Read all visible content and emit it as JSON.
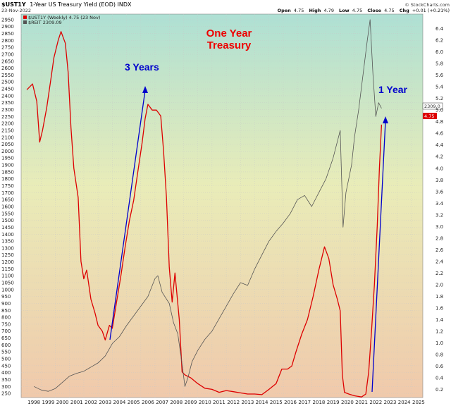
{
  "header": {
    "symbol": "$UST1Y",
    "description": "1-Year US Treasury Yield (EOD) INDX",
    "date": "23-Nov-2022",
    "source": "© StockCharts.com",
    "quote": {
      "open_label": "Open",
      "open": "4.75",
      "high_label": "High",
      "high": "4.79",
      "low_label": "Low",
      "low": "4.75",
      "close_label": "Close",
      "close": "4.75",
      "chg_label": "Chg",
      "chg": "+0.01 (+0.21%)"
    }
  },
  "legend": [
    {
      "text": "$UST1Y (Weekly) 4.75 (23 Nov)",
      "color": "#dd0000"
    },
    {
      "text": "$REIT 2309.09",
      "color": "#555555"
    }
  ],
  "annotations": {
    "title_line1": "One Year",
    "title_line2": "Treasury",
    "three_years": "3 Years",
    "one_year": "1 Year"
  },
  "price_labels": {
    "reit": "2309.0",
    "yield": "4.75"
  },
  "colors": {
    "yield": "#dd0000",
    "reit": "#555555",
    "arrow": "#0000cc",
    "annotation_red": "#ee0000",
    "annotation_blue": "#0000cc"
  },
  "chart_data": {
    "type": "line",
    "x_axis_labels": [
      "1998",
      "1999",
      "2000",
      "2001",
      "2002",
      "2003",
      "2004",
      "2005",
      "2006",
      "2007",
      "2008",
      "2009",
      "2010",
      "2011",
      "2012",
      "2013",
      "2014",
      "2015",
      "2016",
      "2017",
      "2018",
      "2019",
      "2020",
      "2021",
      "2022",
      "2023",
      "2024",
      "2025"
    ],
    "xlim": [
      1997.6,
      2025.8
    ],
    "left_axis": {
      "ylim": [
        220,
        2990
      ],
      "ticks": [
        250,
        300,
        350,
        400,
        450,
        500,
        550,
        600,
        650,
        700,
        750,
        800,
        850,
        900,
        950,
        1000,
        1050,
        1100,
        1150,
        1200,
        1250,
        1300,
        1350,
        1400,
        1450,
        1500,
        1550,
        1600,
        1650,
        1700,
        1750,
        1800,
        1850,
        1900,
        1950,
        2000,
        2050,
        2100,
        2150,
        2200,
        2250,
        2300,
        2350,
        2400,
        2450,
        2500,
        2550,
        2600,
        2650,
        2700,
        2750,
        2800,
        2850,
        2900,
        2950
      ]
    },
    "right_axis": {
      "ylim": [
        0.06,
        6.65
      ],
      "ticks": [
        0.2,
        0.4,
        0.6,
        0.8,
        1.0,
        1.2,
        1.4,
        1.6,
        1.8,
        2.0,
        2.2,
        2.4,
        2.6,
        2.8,
        3.0,
        3.2,
        3.4,
        3.6,
        3.8,
        4.0,
        4.2,
        4.4,
        4.6,
        4.8,
        5.0,
        5.2,
        5.4,
        5.6,
        5.8,
        6.0,
        6.2,
        6.4
      ]
    },
    "series": [
      {
        "name": "$UST1Y (Weekly)",
        "axis": "right",
        "x": [
          1998.0,
          1998.4,
          1998.7,
          1998.9,
          1999.1,
          1999.4,
          1999.7,
          1999.9,
          2000.2,
          2000.4,
          2000.7,
          2000.9,
          2001.1,
          2001.3,
          2001.6,
          2001.8,
          2002.0,
          2002.2,
          2002.5,
          2002.8,
          2003.0,
          2003.3,
          2003.5,
          2003.8,
          2004.0,
          2004.3,
          2004.6,
          2004.9,
          2005.2,
          2005.5,
          2005.8,
          2006.1,
          2006.3,
          2006.5,
          2006.8,
          2007.1,
          2007.4,
          2007.6,
          2007.8,
          2008.0,
          2008.2,
          2008.4,
          2008.7,
          2008.9,
          2009.1,
          2009.5,
          2010.0,
          2010.5,
          2011.0,
          2011.5,
          2012.0,
          2012.5,
          2013.0,
          2013.5,
          2014.0,
          2014.5,
          2015.0,
          2015.5,
          2015.9,
          2016.3,
          2016.6,
          2016.9,
          2017.3,
          2017.7,
          2018.1,
          2018.5,
          2018.9,
          2019.2,
          2019.5,
          2019.8,
          2020.0,
          2020.15,
          2020.3,
          2020.6,
          2021.0,
          2021.5,
          2021.8,
          2022.0,
          2022.2,
          2022.4,
          2022.6,
          2022.75,
          2022.9
        ],
        "values": [
          5.35,
          5.45,
          5.15,
          4.45,
          4.65,
          5.05,
          5.55,
          5.9,
          6.2,
          6.35,
          6.15,
          5.65,
          4.7,
          4.0,
          3.5,
          2.4,
          2.1,
          2.25,
          1.75,
          1.5,
          1.3,
          1.2,
          1.05,
          1.3,
          1.25,
          1.7,
          2.15,
          2.65,
          3.1,
          3.45,
          3.95,
          4.45,
          4.85,
          5.1,
          5.0,
          5.0,
          4.9,
          4.3,
          3.5,
          2.3,
          1.7,
          2.2,
          1.4,
          0.5,
          0.45,
          0.4,
          0.3,
          0.22,
          0.2,
          0.15,
          0.18,
          0.16,
          0.14,
          0.12,
          0.12,
          0.11,
          0.2,
          0.3,
          0.55,
          0.55,
          0.6,
          0.85,
          1.15,
          1.4,
          1.8,
          2.25,
          2.65,
          2.45,
          2.0,
          1.75,
          1.55,
          0.45,
          0.15,
          0.12,
          0.09,
          0.07,
          0.12,
          0.5,
          1.2,
          2.0,
          3.0,
          4.0,
          4.75
        ]
      },
      {
        "name": "$REIT",
        "axis": "left",
        "x": [
          1998.5,
          1999.0,
          1999.5,
          2000.0,
          2000.5,
          2001.0,
          2001.5,
          2002.0,
          2002.5,
          2003.0,
          2003.5,
          2004.0,
          2004.5,
          2005.0,
          2005.5,
          2006.0,
          2006.5,
          2007.0,
          2007.2,
          2007.5,
          2008.0,
          2008.3,
          2008.6,
          2008.9,
          2009.1,
          2009.3,
          2009.6,
          2010.0,
          2010.5,
          2011.0,
          2011.5,
          2012.0,
          2012.5,
          2013.0,
          2013.5,
          2014.0,
          2014.5,
          2015.0,
          2015.5,
          2016.0,
          2016.5,
          2017.0,
          2017.5,
          2018.0,
          2018.5,
          2019.0,
          2019.5,
          2020.0,
          2020.2,
          2020.4,
          2020.8,
          2021.0,
          2021.3,
          2021.6,
          2021.9,
          2022.1,
          2022.3,
          2022.5,
          2022.7,
          2022.9
        ],
        "values": [
          300,
          275,
          265,
          285,
          330,
          375,
          395,
          410,
          440,
          470,
          520,
          610,
          660,
          740,
          810,
          880,
          950,
          1080,
          1100,
          980,
          900,
          760,
          680,
          460,
          300,
          360,
          480,
          560,
          640,
          700,
          790,
          880,
          970,
          1050,
          1030,
          1150,
          1250,
          1350,
          1420,
          1480,
          1550,
          1650,
          1680,
          1600,
          1700,
          1800,
          1950,
          2150,
          1450,
          1700,
          1900,
          2100,
          2300,
          2550,
          2800,
          2950,
          2550,
          2250,
          2350,
          2309
        ]
      }
    ]
  }
}
